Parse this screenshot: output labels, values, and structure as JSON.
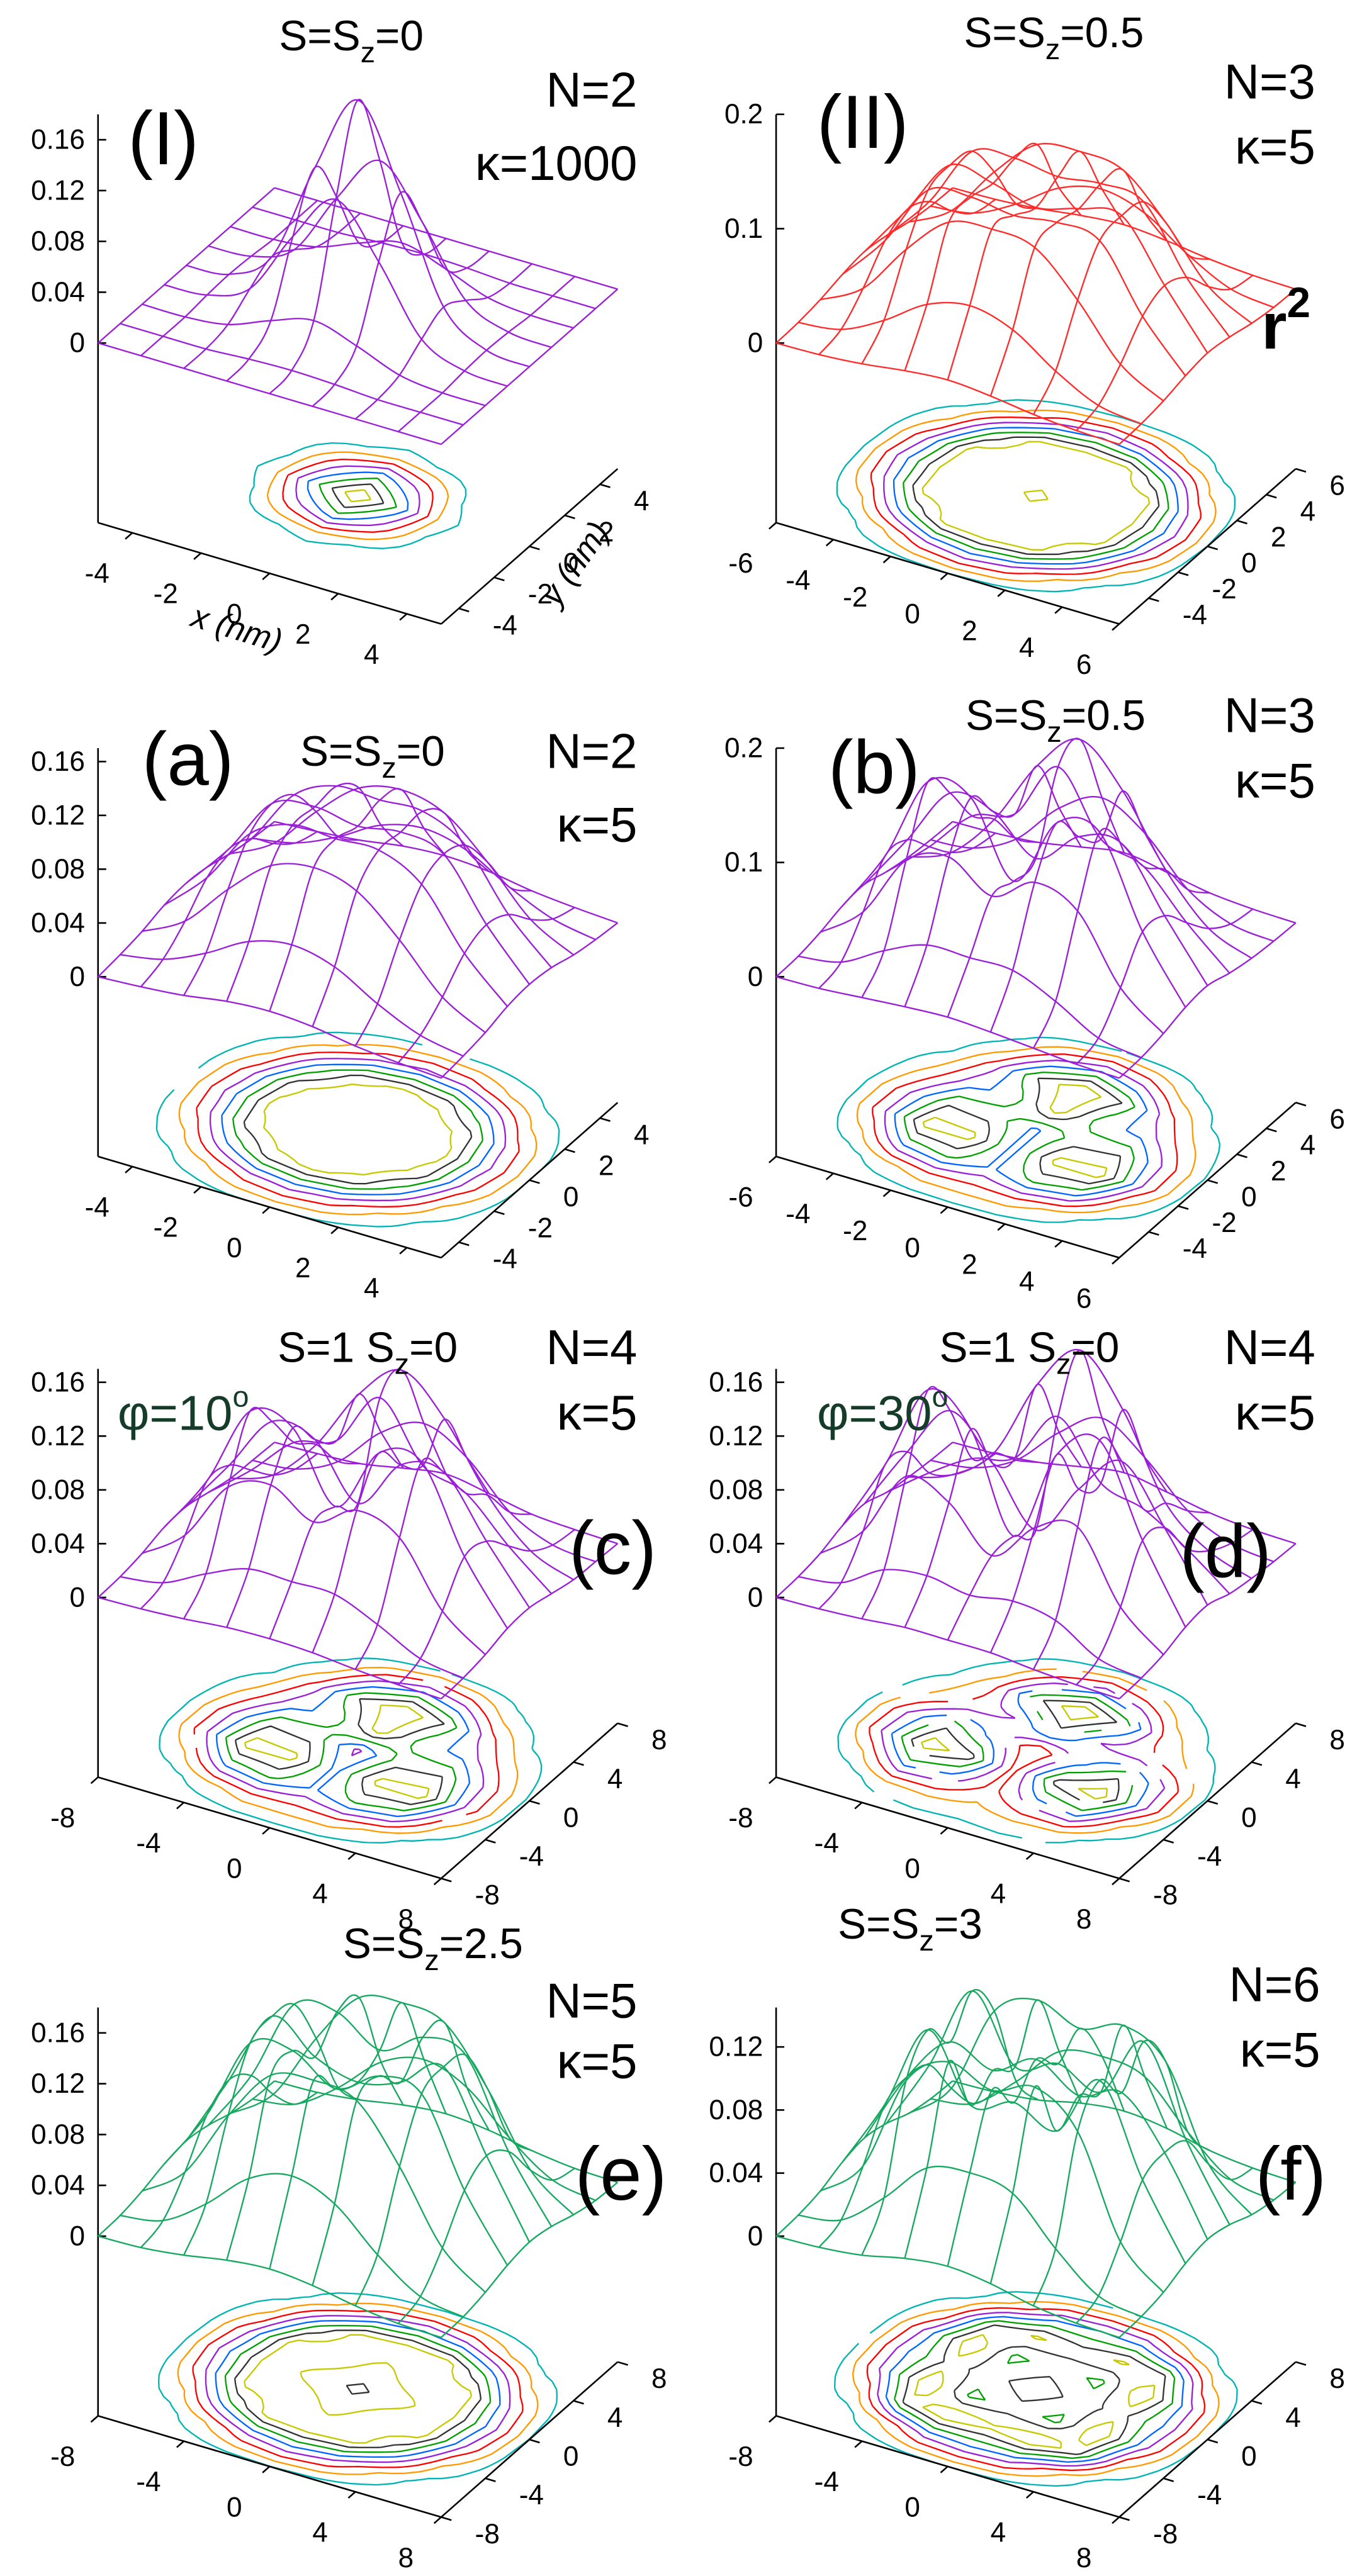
{
  "chart_data": [
    {
      "type": "surface",
      "panel_label": "(I)",
      "spin_label": [
        "S=S",
        "z",
        "=0"
      ],
      "n_label": "N=2",
      "kappa_label": "κ=1000",
      "xlabel": "x (nm)",
      "ylabel": "y (nm)",
      "color": "#9a1fd6",
      "x": [
        -5,
        -3.75,
        -2.5,
        -1.25,
        0,
        1.25,
        2.5,
        3.75,
        5
      ],
      "y": [
        -5,
        -3.75,
        -2.5,
        -1.25,
        0,
        1.25,
        2.5,
        3.75,
        5
      ],
      "z": [
        [
          0,
          0,
          0,
          0,
          0,
          0,
          0,
          0,
          0
        ],
        [
          0,
          0,
          0,
          0.002,
          0.003,
          0.002,
          0,
          0,
          0
        ],
        [
          0,
          0,
          0.004,
          0.017,
          0.027,
          0.017,
          0.004,
          0,
          0
        ],
        [
          0,
          0.002,
          0.017,
          0.068,
          0.107,
          0.068,
          0.017,
          0.002,
          0
        ],
        [
          0,
          0.003,
          0.027,
          0.107,
          0.17,
          0.107,
          0.027,
          0.003,
          0
        ],
        [
          0,
          0.002,
          0.017,
          0.068,
          0.107,
          0.068,
          0.017,
          0.002,
          0
        ],
        [
          0,
          0,
          0.004,
          0.017,
          0.027,
          0.017,
          0.004,
          0,
          0
        ],
        [
          0,
          0,
          0,
          0.002,
          0.003,
          0.002,
          0,
          0,
          0
        ],
        [
          0,
          0,
          0,
          0,
          0,
          0,
          0,
          0,
          0
        ]
      ],
      "xlim": [
        -5,
        5
      ],
      "ylim": [
        -5,
        5
      ],
      "zlim": [
        0,
        0.18
      ],
      "xticks": [
        -4,
        -2,
        0,
        2,
        4
      ],
      "yticks": [
        -4,
        -2,
        0,
        2,
        4
      ],
      "zticks": [
        0,
        0.04,
        0.08,
        0.12,
        0.16
      ]
    },
    {
      "type": "surface",
      "panel_label": "(II)",
      "spin_label": [
        "S=S",
        "z",
        "=0.5"
      ],
      "n_label": "N=3",
      "kappa_label": "κ=5",
      "annotation": [
        "r",
        "2"
      ],
      "color": "#ff2a2a",
      "x": [
        -6,
        -4.5,
        -3,
        -1.5,
        0,
        1.5,
        3,
        4.5,
        6
      ],
      "y": [
        -6,
        -4.5,
        -3,
        -1.5,
        0,
        1.5,
        3,
        4.5,
        6
      ],
      "z": [
        [
          0,
          0.001,
          0.004,
          0.009,
          0.012,
          0.009,
          0.004,
          0.001,
          0
        ],
        [
          0.001,
          0.006,
          0.025,
          0.05,
          0.06,
          0.05,
          0.025,
          0.006,
          0.001
        ],
        [
          0.004,
          0.025,
          0.07,
          0.105,
          0.11,
          0.105,
          0.07,
          0.025,
          0.004
        ],
        [
          0.009,
          0.05,
          0.105,
          0.11,
          0.105,
          0.11,
          0.105,
          0.05,
          0.009
        ],
        [
          0.012,
          0.06,
          0.11,
          0.105,
          0.095,
          0.105,
          0.11,
          0.06,
          0.012
        ],
        [
          0.009,
          0.05,
          0.105,
          0.11,
          0.105,
          0.11,
          0.105,
          0.05,
          0.009
        ],
        [
          0.004,
          0.025,
          0.07,
          0.105,
          0.11,
          0.105,
          0.07,
          0.025,
          0.004
        ],
        [
          0.001,
          0.006,
          0.025,
          0.05,
          0.06,
          0.05,
          0.025,
          0.006,
          0.001
        ],
        [
          0,
          0.001,
          0.004,
          0.009,
          0.012,
          0.009,
          0.004,
          0.001,
          0
        ]
      ],
      "xlim": [
        -6,
        6
      ],
      "ylim": [
        -6,
        6
      ],
      "zlim": [
        0,
        0.2
      ],
      "xticks": [
        -6,
        -4,
        -2,
        0,
        2,
        4,
        6
      ],
      "yticks": [
        -4,
        -2,
        0,
        2,
        4,
        6
      ],
      "zticks": [
        0,
        0.1,
        0.2
      ]
    },
    {
      "type": "surface",
      "panel_label": "(a)",
      "spin_label": [
        "S=S",
        "z",
        "=0"
      ],
      "n_label": "N=2",
      "kappa_label": "κ=5",
      "color": "#9a1fd6",
      "x": [
        -5,
        -3.75,
        -2.5,
        -1.25,
        0,
        1.25,
        2.5,
        3.75,
        5
      ],
      "y": [
        -5,
        -3.75,
        -2.5,
        -1.25,
        0,
        1.25,
        2.5,
        3.75,
        5
      ],
      "z": [
        [
          0,
          0.002,
          0.005,
          0.01,
          0.012,
          0.01,
          0.005,
          0.002,
          0
        ],
        [
          0.002,
          0.008,
          0.022,
          0.04,
          0.047,
          0.04,
          0.022,
          0.008,
          0.002
        ],
        [
          0.005,
          0.022,
          0.055,
          0.082,
          0.09,
          0.082,
          0.055,
          0.022,
          0.005
        ],
        [
          0.01,
          0.04,
          0.082,
          0.098,
          0.097,
          0.098,
          0.082,
          0.04,
          0.01
        ],
        [
          0.012,
          0.047,
          0.09,
          0.097,
          0.092,
          0.097,
          0.09,
          0.047,
          0.012
        ],
        [
          0.01,
          0.04,
          0.082,
          0.098,
          0.097,
          0.098,
          0.082,
          0.04,
          0.01
        ],
        [
          0.005,
          0.022,
          0.055,
          0.082,
          0.09,
          0.082,
          0.055,
          0.022,
          0.005
        ],
        [
          0.002,
          0.008,
          0.022,
          0.04,
          0.047,
          0.04,
          0.022,
          0.008,
          0.002
        ],
        [
          0,
          0.002,
          0.005,
          0.01,
          0.012,
          0.01,
          0.005,
          0.002,
          0
        ]
      ],
      "xlim": [
        -5,
        5
      ],
      "ylim": [
        -5,
        5
      ],
      "zlim": [
        0,
        0.17
      ],
      "xticks": [
        -4,
        -2,
        0,
        2,
        4
      ],
      "yticks": [
        -4,
        -2,
        0,
        2,
        4
      ],
      "zticks": [
        0,
        0.04,
        0.08,
        0.12,
        0.16
      ]
    },
    {
      "type": "surface",
      "panel_label": "(b)",
      "spin_label": [
        "S=S",
        "z",
        "=0.5"
      ],
      "n_label": "N=3",
      "kappa_label": "κ=5",
      "color": "#9a1fd6",
      "x": [
        -6,
        -4.5,
        -3,
        -1.5,
        0,
        1.5,
        3,
        4.5,
        6
      ],
      "y": [
        -6,
        -4.5,
        -3,
        -1.5,
        0,
        1.5,
        3,
        4.5,
        6
      ],
      "z": [
        [
          0,
          0.001,
          0.004,
          0.007,
          0.009,
          0.007,
          0.004,
          0.001,
          0
        ],
        [
          0.001,
          0.007,
          0.028,
          0.044,
          0.044,
          0.044,
          0.028,
          0.007,
          0.001
        ],
        [
          0.005,
          0.034,
          0.09,
          0.104,
          0.081,
          0.104,
          0.09,
          0.034,
          0.005
        ],
        [
          0.011,
          0.066,
          0.142,
          0.139,
          0.077,
          0.139,
          0.142,
          0.066,
          0.011
        ],
        [
          0.013,
          0.063,
          0.115,
          0.11,
          0.08,
          0.11,
          0.115,
          0.063,
          0.013
        ],
        [
          0.007,
          0.04,
          0.078,
          0.091,
          0.143,
          0.091,
          0.078,
          0.04,
          0.007
        ],
        [
          0.003,
          0.018,
          0.058,
          0.116,
          0.15,
          0.116,
          0.058,
          0.018,
          0.003
        ],
        [
          0.001,
          0.005,
          0.024,
          0.062,
          0.082,
          0.062,
          0.024,
          0.005,
          0.001
        ],
        [
          0,
          0.001,
          0.004,
          0.011,
          0.017,
          0.011,
          0.004,
          0.001,
          0
        ]
      ],
      "xlim": [
        -6,
        6
      ],
      "ylim": [
        -6,
        6
      ],
      "zlim": [
        0,
        0.2
      ],
      "xticks": [
        -6,
        -4,
        -2,
        0,
        2,
        4,
        6
      ],
      "yticks": [
        -4,
        -2,
        0,
        2,
        4,
        6
      ],
      "zticks": [
        0,
        0.1,
        0.2
      ]
    },
    {
      "type": "surface",
      "panel_label": "(c)",
      "spin_label": [
        "S=1 S",
        "z",
        "=0"
      ],
      "n_label": "N=4",
      "kappa_label": "κ=5",
      "phi_label": [
        "φ=10",
        "o"
      ],
      "color": "#9a1fd6",
      "x": [
        -8,
        -6,
        -4,
        -2,
        0,
        2,
        4,
        6,
        8
      ],
      "y": [
        -8,
        -6,
        -4,
        -2,
        0,
        2,
        4,
        6,
        8
      ],
      "z": [
        [
          0,
          0.001,
          0.003,
          0.006,
          0.007,
          0.006,
          0.003,
          0.001,
          0
        ],
        [
          0.001,
          0.006,
          0.022,
          0.035,
          0.035,
          0.035,
          0.022,
          0.006,
          0.001
        ],
        [
          0.004,
          0.027,
          0.072,
          0.083,
          0.065,
          0.083,
          0.072,
          0.027,
          0.004
        ],
        [
          0.009,
          0.053,
          0.114,
          0.111,
          0.062,
          0.111,
          0.114,
          0.053,
          0.009
        ],
        [
          0.01,
          0.05,
          0.092,
          0.088,
          0.05,
          0.088,
          0.092,
          0.05,
          0.01
        ],
        [
          0.006,
          0.032,
          0.062,
          0.073,
          0.114,
          0.073,
          0.062,
          0.032,
          0.006
        ],
        [
          0.002,
          0.014,
          0.046,
          0.093,
          0.12,
          0.093,
          0.046,
          0.014,
          0.002
        ],
        [
          0.001,
          0.004,
          0.019,
          0.05,
          0.066,
          0.05,
          0.019,
          0.004,
          0.001
        ],
        [
          0,
          0.001,
          0.003,
          0.009,
          0.014,
          0.009,
          0.003,
          0.001,
          0
        ]
      ],
      "xlim": [
        -8,
        8
      ],
      "ylim": [
        -8,
        8
      ],
      "zlim": [
        0,
        0.17
      ],
      "xticks": [
        -8,
        -4,
        0,
        4,
        8
      ],
      "yticks": [
        -8,
        -4,
        0,
        4,
        8
      ],
      "zticks": [
        0,
        0.04,
        0.08,
        0.12,
        0.16
      ]
    },
    {
      "type": "surface",
      "panel_label": "(d)",
      "spin_label": [
        "S=1 S",
        "z",
        "=0"
      ],
      "n_label": "N=4",
      "kappa_label": "κ=5",
      "phi_label": [
        "φ=30",
        "o"
      ],
      "color": "#9a1fd6",
      "x": [
        -8,
        -6,
        -4,
        -2,
        0,
        2,
        4,
        6,
        8
      ],
      "y": [
        -8,
        -6,
        -4,
        -2,
        0,
        2,
        4,
        6,
        8
      ],
      "z": [
        [
          0,
          0.001,
          0.003,
          0.006,
          0.006,
          0.006,
          0.003,
          0.001,
          0
        ],
        [
          0.001,
          0.006,
          0.025,
          0.03,
          0.025,
          0.03,
          0.025,
          0.006,
          0.001
        ],
        [
          0.004,
          0.03,
          0.08,
          0.07,
          0.04,
          0.07,
          0.08,
          0.03,
          0.004
        ],
        [
          0.01,
          0.065,
          0.13,
          0.11,
          0.04,
          0.11,
          0.13,
          0.065,
          0.01
        ],
        [
          0.012,
          0.06,
          0.1,
          0.07,
          0.03,
          0.07,
          0.1,
          0.06,
          0.012
        ],
        [
          0.006,
          0.03,
          0.05,
          0.06,
          0.1,
          0.06,
          0.05,
          0.03,
          0.006
        ],
        [
          0.003,
          0.014,
          0.04,
          0.1,
          0.135,
          0.1,
          0.04,
          0.014,
          0.003
        ],
        [
          0.001,
          0.005,
          0.02,
          0.05,
          0.07,
          0.05,
          0.02,
          0.005,
          0.001
        ],
        [
          0,
          0.001,
          0.004,
          0.01,
          0.015,
          0.01,
          0.004,
          0.001,
          0
        ]
      ],
      "xlim": [
        -8,
        8
      ],
      "ylim": [
        -8,
        8
      ],
      "zlim": [
        0,
        0.17
      ],
      "xticks": [
        -8,
        -4,
        0,
        4,
        8
      ],
      "yticks": [
        -8,
        -4,
        0,
        4,
        8
      ],
      "zticks": [
        0,
        0.04,
        0.08,
        0.12,
        0.16
      ]
    },
    {
      "type": "surface",
      "panel_label": "(e)",
      "spin_label": [
        "S=S",
        "z",
        "=2.5"
      ],
      "n_label": "N=5",
      "kappa_label": "κ=5",
      "color": "#17a860",
      "x": [
        -8,
        -6,
        -4,
        -2,
        0,
        2,
        4,
        6,
        8
      ],
      "y": [
        -8,
        -6,
        -4,
        -2,
        0,
        2,
        4,
        6,
        8
      ],
      "z": [
        [
          0,
          0.001,
          0.005,
          0.011,
          0.014,
          0.011,
          0.005,
          0.001,
          0
        ],
        [
          0.001,
          0.007,
          0.03,
          0.06,
          0.072,
          0.06,
          0.03,
          0.007,
          0.001
        ],
        [
          0.005,
          0.03,
          0.084,
          0.126,
          0.132,
          0.126,
          0.084,
          0.03,
          0.005
        ],
        [
          0.011,
          0.06,
          0.126,
          0.13,
          0.11,
          0.13,
          0.126,
          0.06,
          0.011
        ],
        [
          0.014,
          0.072,
          0.132,
          0.11,
          0.1,
          0.11,
          0.132,
          0.072,
          0.014
        ],
        [
          0.011,
          0.06,
          0.126,
          0.13,
          0.11,
          0.13,
          0.126,
          0.06,
          0.011
        ],
        [
          0.005,
          0.03,
          0.084,
          0.126,
          0.132,
          0.126,
          0.084,
          0.03,
          0.005
        ],
        [
          0.001,
          0.007,
          0.03,
          0.06,
          0.072,
          0.06,
          0.03,
          0.007,
          0.001
        ],
        [
          0,
          0.001,
          0.005,
          0.011,
          0.014,
          0.011,
          0.005,
          0.001,
          0
        ]
      ],
      "xlim": [
        -8,
        8
      ],
      "ylim": [
        -8,
        8
      ],
      "zlim": [
        0,
        0.18
      ],
      "xticks": [
        -8,
        -4,
        0,
        4,
        8
      ],
      "yticks": [
        -8,
        -4,
        0,
        4,
        8
      ],
      "zticks": [
        0,
        0.04,
        0.08,
        0.12,
        0.16
      ]
    },
    {
      "type": "surface",
      "panel_label": "(f)",
      "spin_label": [
        "S=S",
        "z",
        "=3"
      ],
      "n_label": "N=6",
      "kappa_label": "κ=5",
      "color": "#17a860",
      "x": [
        -8,
        -6,
        -4,
        -2,
        0,
        2,
        4,
        6,
        8
      ],
      "y": [
        -8,
        -6,
        -4,
        -2,
        0,
        2,
        4,
        6,
        8
      ],
      "z": [
        [
          0,
          0.001,
          0.004,
          0.01,
          0.013,
          0.01,
          0.004,
          0.001,
          0
        ],
        [
          0.001,
          0.006,
          0.028,
          0.055,
          0.06,
          0.055,
          0.028,
          0.006,
          0.001
        ],
        [
          0.004,
          0.028,
          0.09,
          0.11,
          0.1,
          0.11,
          0.09,
          0.028,
          0.004
        ],
        [
          0.01,
          0.055,
          0.11,
          0.07,
          0.08,
          0.07,
          0.11,
          0.055,
          0.01
        ],
        [
          0.013,
          0.06,
          0.09,
          0.08,
          0.095,
          0.08,
          0.09,
          0.06,
          0.013
        ],
        [
          0.01,
          0.055,
          0.11,
          0.07,
          0.08,
          0.07,
          0.11,
          0.055,
          0.01
        ],
        [
          0.004,
          0.028,
          0.085,
          0.1,
          0.09,
          0.1,
          0.085,
          0.028,
          0.004
        ],
        [
          0.001,
          0.006,
          0.028,
          0.055,
          0.06,
          0.055,
          0.028,
          0.006,
          0.001
        ],
        [
          0,
          0.001,
          0.004,
          0.01,
          0.013,
          0.01,
          0.004,
          0.001,
          0
        ]
      ],
      "xlim": [
        -8,
        8
      ],
      "ylim": [
        -8,
        8
      ],
      "zlim": [
        0,
        0.145
      ],
      "xticks": [
        -8,
        -4,
        0,
        4,
        8
      ],
      "yticks": [
        -8,
        -4,
        0,
        4,
        8
      ],
      "zticks": [
        0,
        0.04,
        0.08,
        0.12
      ]
    }
  ]
}
